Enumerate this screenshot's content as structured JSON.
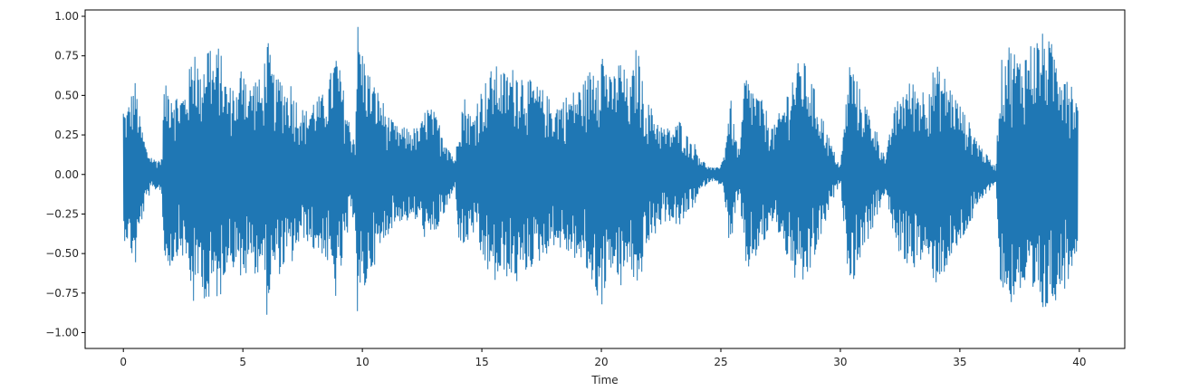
{
  "chart_data": {
    "type": "line",
    "title": "",
    "xlabel": "Time",
    "ylabel": "",
    "xlim": [
      -1.6,
      41.9
    ],
    "ylim": [
      -1.1,
      1.04
    ],
    "grid": false,
    "x_ticks": [
      0,
      5,
      10,
      15,
      20,
      25,
      30,
      35,
      40
    ],
    "x_tick_labels": [
      "0",
      "5",
      "10",
      "15",
      "20",
      "25",
      "30",
      "35",
      "40"
    ],
    "y_ticks": [
      1.0,
      0.75,
      0.5,
      0.25,
      0.0,
      -0.25,
      -0.5,
      -0.75,
      -1.0
    ],
    "y_tick_labels": [
      "1.00",
      "0.75",
      "0.50",
      "0.25",
      "0.00",
      "−0.25",
      "−0.50",
      "−0.75",
      "−1.00"
    ],
    "series": [
      {
        "color": "#1f77b4",
        "x_range": [
          0,
          39.95
        ],
        "envelope": {
          "time": [
            0,
            0.1,
            0.3,
            0.5,
            0.7,
            1.0,
            1.3,
            1.6,
            1.7,
            2.0,
            2.3,
            2.6,
            2.8,
            3.0,
            3.2,
            3.4,
            3.6,
            3.8,
            4.0,
            4.2,
            4.4,
            4.6,
            4.8,
            5.0,
            5.2,
            5.4,
            5.6,
            5.8,
            6.0,
            6.2,
            6.4,
            6.6,
            6.8,
            7.0,
            7.2,
            7.4,
            7.6,
            7.8,
            8.0,
            8.3,
            8.6,
            8.9,
            9.2,
            9.5,
            9.7,
            9.8,
            10.0,
            10.2,
            10.4,
            10.6,
            10.8,
            11.0,
            11.2,
            11.5,
            11.8,
            12.1,
            12.4,
            12.7,
            13.0,
            13.3,
            13.6,
            13.9,
            14.0,
            14.3,
            14.6,
            14.8,
            15.0,
            15.5,
            16.0,
            16.5,
            17.0,
            17.5,
            18.0,
            18.5,
            19.0,
            19.3,
            19.6,
            20.0,
            20.4,
            20.8,
            21.2,
            21.5,
            21.8,
            22.2,
            22.6,
            23.0,
            23.3,
            23.6,
            23.9,
            24.2,
            24.5,
            24.8,
            25.1,
            25.4,
            25.6,
            25.8,
            26.0,
            26.4,
            26.8,
            27.2,
            27.6,
            28.0,
            28.4,
            28.8,
            29.2,
            29.6,
            30.0,
            30.4,
            30.8,
            31.2,
            31.6,
            31.9,
            32.2,
            32.6,
            33.0,
            33.5,
            34.0,
            34.5,
            35.0,
            35.5,
            36.0,
            36.5,
            36.7,
            37.0,
            37.5,
            38.0,
            38.5,
            39.0,
            39.5,
            39.95
          ],
          "amplitude": [
            0.45,
            0.4,
            0.5,
            0.6,
            0.35,
            0.15,
            0.1,
            0.1,
            0.55,
            0.6,
            0.5,
            0.55,
            0.7,
            0.9,
            0.6,
            0.8,
            0.9,
            0.7,
            0.85,
            0.65,
            0.55,
            0.6,
            0.5,
            0.85,
            0.55,
            0.6,
            0.65,
            0.55,
            0.9,
            0.7,
            0.6,
            0.65,
            0.55,
            0.6,
            0.5,
            0.45,
            0.4,
            0.45,
            0.5,
            0.5,
            0.6,
            0.8,
            0.55,
            0.3,
            0.25,
            0.98,
            0.8,
            0.7,
            0.6,
            0.55,
            0.5,
            0.4,
            0.35,
            0.3,
            0.3,
            0.3,
            0.3,
            0.45,
            0.4,
            0.3,
            0.2,
            0.08,
            0.4,
            0.5,
            0.35,
            0.5,
            0.55,
            0.7,
            0.65,
            0.7,
            0.6,
            0.55,
            0.45,
            0.5,
            0.55,
            0.6,
            0.7,
            0.85,
            0.6,
            0.75,
            0.55,
            0.85,
            0.5,
            0.4,
            0.3,
            0.3,
            0.35,
            0.25,
            0.2,
            0.1,
            0.05,
            0.04,
            0.1,
            0.5,
            0.25,
            0.15,
            0.65,
            0.55,
            0.45,
            0.3,
            0.45,
            0.65,
            0.75,
            0.6,
            0.4,
            0.2,
            0.05,
            0.75,
            0.55,
            0.4,
            0.25,
            0.1,
            0.4,
            0.55,
            0.6,
            0.55,
            0.7,
            0.6,
            0.45,
            0.3,
            0.15,
            0.05,
            0.7,
            0.85,
            0.75,
            0.85,
            0.9,
            0.8,
            0.7,
            0.45
          ]
        }
      }
    ]
  }
}
